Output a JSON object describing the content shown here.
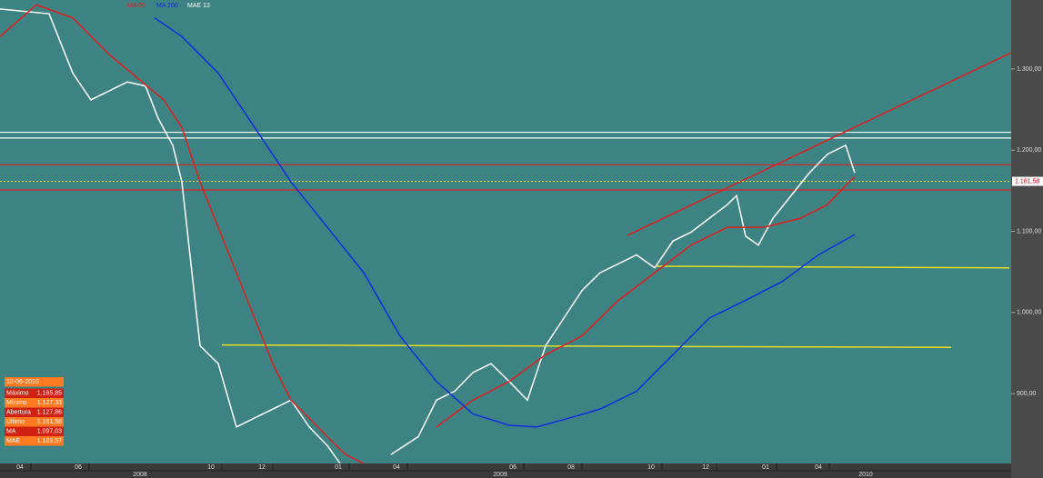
{
  "chart_data": {
    "type": "line",
    "legend": [
      "MA 65",
      "MA 200",
      "MAE 13"
    ],
    "xlim": [
      0,
      556
    ],
    "ylim": [
      814,
      1385
    ],
    "yticks": [
      {
        "value": 1300,
        "label": "1.300,00"
      },
      {
        "value": 1200,
        "label": "1.200,00"
      },
      {
        "value": 1100,
        "label": "1.100,00"
      },
      {
        "value": 1000,
        "label": "1.000,00"
      },
      {
        "value": 900,
        "label": "900,00"
      }
    ],
    "xticks": [
      {
        "value": 11,
        "label": "04"
      },
      {
        "value": 43,
        "label": "06"
      },
      {
        "value": 116,
        "label": "10"
      },
      {
        "value": 144,
        "label": "12"
      },
      {
        "value": 186,
        "label": "01"
      },
      {
        "value": 218,
        "label": "04"
      },
      {
        "value": 282,
        "label": "06"
      },
      {
        "value": 314,
        "label": "08"
      },
      {
        "value": 358,
        "label": "10"
      },
      {
        "value": 388,
        "label": "12"
      },
      {
        "value": 421,
        "label": "01"
      },
      {
        "value": 450,
        "label": "04"
      }
    ],
    "year_ticks": [
      {
        "value": 77,
        "label": "2008"
      },
      {
        "value": 275,
        "label": "2009"
      },
      {
        "value": 476,
        "label": "2010"
      }
    ],
    "series": [
      {
        "name": "MAE 13",
        "color": "#ffffff",
        "x": [
          0,
          27,
          40,
          50,
          60,
          70,
          80,
          87,
          95,
          100,
          105,
          110,
          120,
          130,
          140,
          150,
          160,
          170,
          180,
          187,
          200,
          215,
          230,
          240,
          250,
          260,
          270,
          280,
          290,
          300,
          310,
          320,
          330,
          340,
          350,
          360,
          370,
          380,
          390,
          400,
          405,
          410,
          417,
          425,
          435,
          445,
          455,
          465,
          470
        ],
        "values": [
          1374,
          1368,
          1295,
          1262,
          1273,
          1284,
          1279,
          1239,
          1206,
          1161,
          1060,
          959,
          937,
          859,
          870,
          881,
          892,
          859,
          836,
          814,
          null,
          825,
          847,
          892,
          903,
          926,
          937,
          915,
          892,
          959,
          993,
          1027,
          1049,
          1060,
          1071,
          1055,
          1088,
          1099,
          1116,
          1133,
          1144,
          1094,
          1083,
          1116,
          1144,
          1172,
          1195,
          1206,
          1172
        ]
      },
      {
        "name": "MA 65",
        "color": "#e02020",
        "x": [
          0,
          20,
          40,
          60,
          75,
          90,
          100,
          110,
          120,
          130,
          140,
          150,
          160,
          170,
          180,
          190,
          200,
          220,
          240,
          260,
          280,
          300,
          320,
          340,
          360,
          380,
          400,
          420,
          440,
          455,
          467,
          470
        ],
        "values": [
          1340,
          1379,
          1363,
          1318,
          1290,
          1262,
          1228,
          1161,
          1105,
          1049,
          993,
          937,
          892,
          870,
          847,
          825,
          814,
          null,
          859,
          892,
          915,
          948,
          971,
          1015,
          1049,
          1083,
          1105,
          1105,
          1116,
          1133,
          1161,
          1167
        ]
      },
      {
        "name": "MA 200",
        "color": "#1030e0",
        "x": [
          85,
          100,
          120,
          140,
          160,
          180,
          200,
          220,
          240,
          260,
          280,
          295,
          310,
          330,
          350,
          370,
          390,
          410,
          430,
          450,
          470
        ],
        "values": [
          1363,
          1340,
          1295,
          1228,
          1161,
          1105,
          1049,
          971,
          915,
          875,
          861,
          859,
          868,
          881,
          903,
          948,
          993,
          1015,
          1038,
          1071,
          1096
        ]
      }
    ],
    "levels": [
      {
        "value": 1222,
        "color": "#ffffff"
      },
      {
        "value": 1215,
        "color": "#ffffff"
      },
      {
        "value": 1182,
        "color": "#e02020"
      },
      {
        "value": 1151,
        "color": "#e02020"
      }
    ],
    "trendlines": [
      {
        "x": [
          345,
          556
        ],
        "values": [
          1095,
          1320
        ],
        "color": "#e02020"
      },
      {
        "x": [
          361,
          555
        ],
        "values": [
          1057,
          1055
        ],
        "color": "#e8e020"
      },
      {
        "x": [
          122,
          523
        ],
        "values": [
          960,
          957
        ],
        "color": "#e8e020"
      }
    ],
    "last_price": {
      "value": 1161.58,
      "label": "1.161,58",
      "color": "#e8e020"
    },
    "info_box": {
      "date": "10-06-2010",
      "rows": [
        [
          "Máximo",
          "1.165,85"
        ],
        [
          "Mínimo",
          "1.127,33"
        ],
        [
          "Abertura",
          "1.127,86"
        ],
        [
          "Último",
          "1.161,58"
        ],
        [
          "MA",
          "1.097,03"
        ],
        [
          "MAE",
          "1.169,57"
        ]
      ]
    }
  }
}
